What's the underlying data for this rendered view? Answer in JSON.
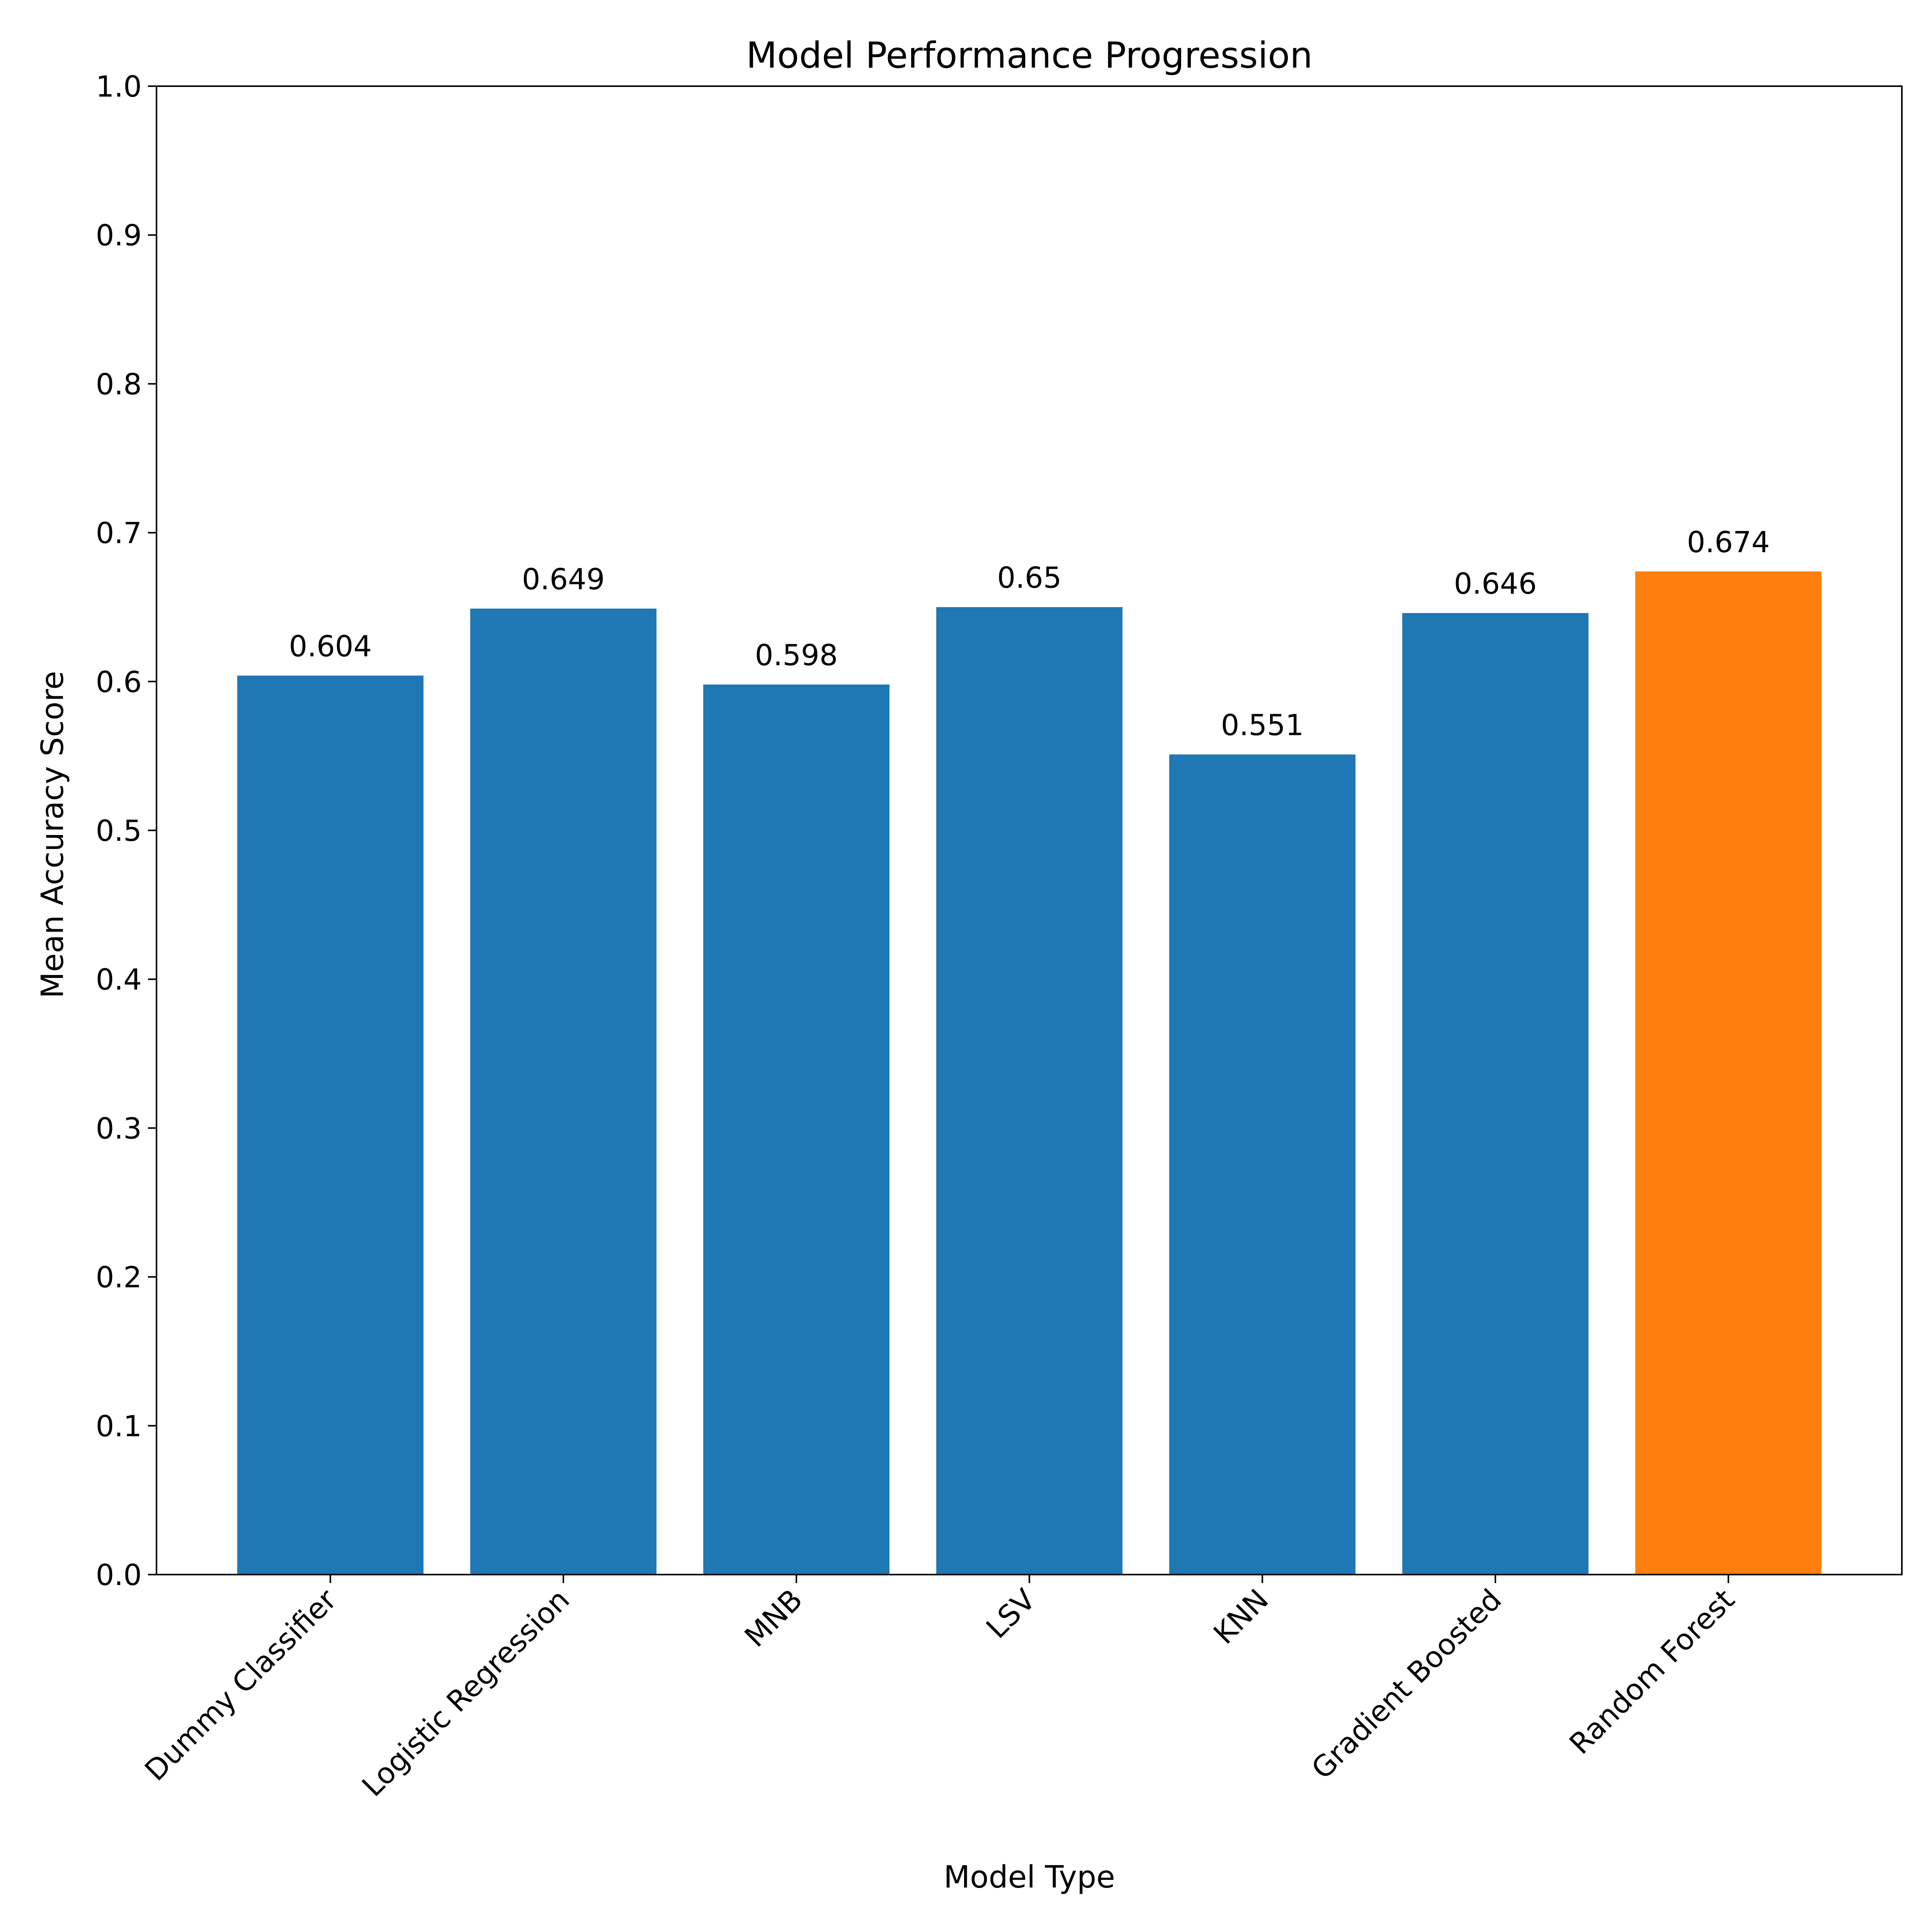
{
  "chart_data": {
    "type": "bar",
    "title": "Model Performance Progression",
    "xlabel": "Model Type",
    "ylabel": "Mean Accuracy Score",
    "ylim": [
      0,
      1.0
    ],
    "yticks": [
      "0.0",
      "0.1",
      "0.2",
      "0.3",
      "0.4",
      "0.5",
      "0.6",
      "0.7",
      "0.8",
      "0.9",
      "1.0"
    ],
    "categories": [
      "Dummy Classifier",
      "Logistic Regression",
      "MNB",
      "LSV",
      "KNN",
      "Gradient Boosted",
      "Random Forest"
    ],
    "values": [
      0.604,
      0.649,
      0.598,
      0.65,
      0.551,
      0.646,
      0.674
    ],
    "value_labels": [
      "0.604",
      "0.649",
      "0.598",
      "0.65",
      "0.551",
      "0.646",
      "0.674"
    ],
    "colors": [
      "#1f77b4",
      "#1f77b4",
      "#1f77b4",
      "#1f77b4",
      "#1f77b4",
      "#1f77b4",
      "#ff7f0e"
    ],
    "grid": false,
    "legend": "none"
  }
}
